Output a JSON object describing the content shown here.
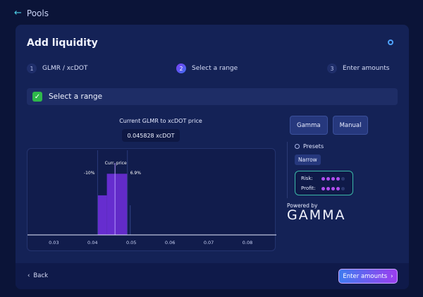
{
  "nav": {
    "back_label": "Pools"
  },
  "card": {
    "title": "Add liquidity"
  },
  "steps": [
    {
      "num": "1",
      "label": "GLMR / xcDOT"
    },
    {
      "num": "2",
      "label": "Select a range"
    },
    {
      "num": "3",
      "label": "Enter amounts"
    }
  ],
  "section": {
    "label": "Select a range"
  },
  "price": {
    "label": "Current GLMR to xcDOT price",
    "value": "0.045828 xcDOT"
  },
  "tabs": [
    "Gamma",
    "Manual"
  ],
  "presets": {
    "title": "Presets",
    "selected": "Narrow",
    "risk_label": "Risk:",
    "risk_level": 4,
    "profit_label": "Profit:",
    "profit_level": 4,
    "max_level": 5
  },
  "powered_by": {
    "label": "Powered by",
    "brand": "GAMMA"
  },
  "chart_data": {
    "type": "bar",
    "x_ticks": [
      "0.03",
      "0.04",
      "0.05",
      "0.06",
      "0.07",
      "0.08"
    ],
    "xlim": [
      0.0232,
      0.0871
    ],
    "current_price": 0.0458,
    "current_label": "Curr. price",
    "range_low_label": "-10%",
    "range_high_label": "6.9%",
    "bars": [
      {
        "x0": 0.0413,
        "x1": 0.0437,
        "value": 0.55
      },
      {
        "x0": 0.0437,
        "x1": 0.0458,
        "value": 0.85
      },
      {
        "x0": 0.0458,
        "x1": 0.049,
        "value": 0.85
      }
    ],
    "colors": {
      "range": "#5a2ab5",
      "bar": "#6b2ed6",
      "axis": "#e8ecff"
    }
  },
  "footer": {
    "back_label": "Back",
    "next_label": "Enter amounts"
  }
}
